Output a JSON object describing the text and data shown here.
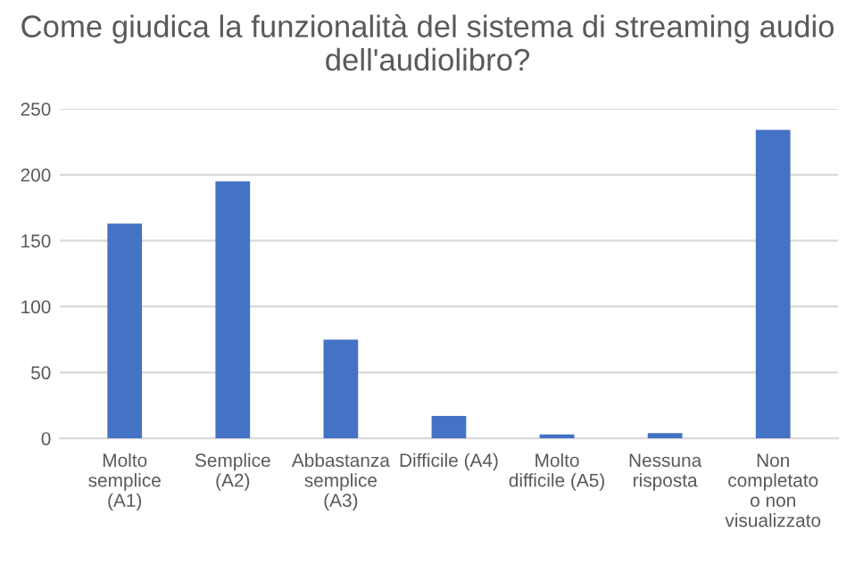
{
  "chart_data": {
    "type": "bar",
    "title": "Come giudica la funzionalità del sistema di streaming audio dell'audiolibro?",
    "categories": [
      "Molto\nsemplice\n(A1)",
      "Semplice\n(A2)",
      "Abbastanza\nsemplice\n(A3)",
      "Difficile (A4)",
      "Molto\ndifficile (A5)",
      "Nessuna\nrisposta",
      "Non\ncompletato\no non\nvisualizzato"
    ],
    "values": [
      163,
      195,
      75,
      17,
      3,
      4,
      234
    ],
    "color": "#4472c4",
    "ylim": [
      0,
      250
    ],
    "yticks": [
      0,
      50,
      100,
      150,
      200,
      250
    ],
    "grid": "y"
  }
}
